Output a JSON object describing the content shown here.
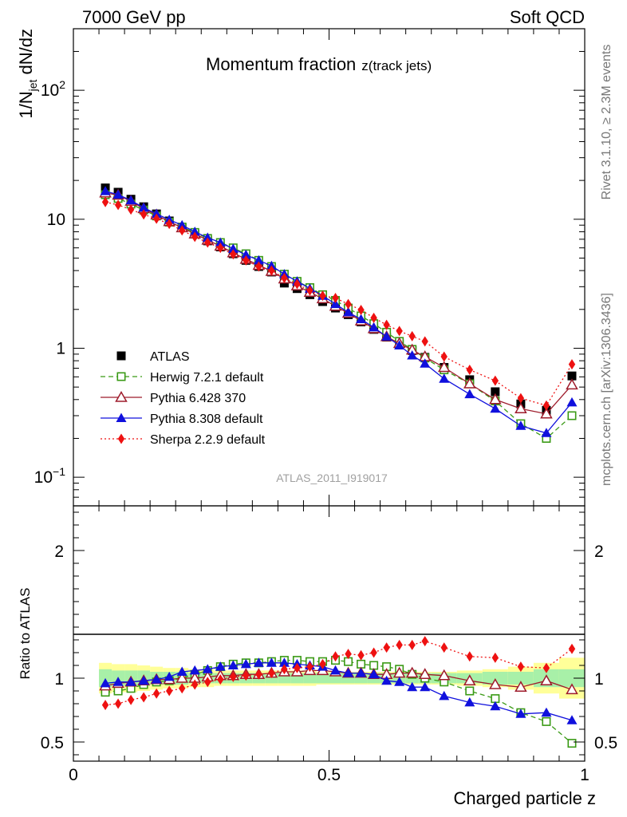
{
  "header": {
    "left": "7000 GeV pp",
    "right": "Soft QCD"
  },
  "side_labels": {
    "rivet": "Rivet 3.1.10, ≥ 2.3M events",
    "mcplots": "mcplots.cern.ch [arXiv:1306.3436]"
  },
  "chart_data": [
    {
      "type": "scatter",
      "panel": "main",
      "title": "Momentum fraction",
      "title_sub": "z(track jets)",
      "ylabel": "1/N_jet dN/dz",
      "ylabel_parts": {
        "pre": "1/N",
        "sub": "jet",
        "post": " dN/dz"
      },
      "yscale": "log",
      "ylim": [
        0.06,
        300
      ],
      "xlim": [
        0,
        1
      ],
      "yticks": [
        {
          "v": 0.1,
          "base": "10",
          "exp": "−1"
        },
        {
          "v": 1,
          "label": "1"
        },
        {
          "v": 10,
          "label": "10"
        },
        {
          "v": 100,
          "base": "10",
          "exp": "2"
        }
      ],
      "analysis_label": "ATLAS_2011_I919017",
      "x": [
        0.0625,
        0.0875,
        0.1125,
        0.1375,
        0.1625,
        0.1875,
        0.2125,
        0.2375,
        0.2625,
        0.2875,
        0.3125,
        0.3375,
        0.3625,
        0.3875,
        0.4125,
        0.4375,
        0.4625,
        0.4875,
        0.5125,
        0.5375,
        0.5625,
        0.5875,
        0.6125,
        0.6375,
        0.6625,
        0.6875,
        0.725,
        0.775,
        0.825,
        0.875,
        0.925,
        0.975
      ],
      "legend_position": "lower-left",
      "series": [
        {
          "name": "ATLAS",
          "marker": "square-filled",
          "color": "#000000",
          "line": "none",
          "values": [
            17.5,
            16.2,
            14.3,
            12.5,
            11.0,
            9.7,
            8.6,
            7.7,
            6.8,
            6.1,
            5.4,
            4.8,
            4.3,
            3.9,
            3.2,
            2.9,
            2.6,
            2.3,
            2.05,
            1.82,
            1.6,
            1.4,
            1.22,
            1.08,
            0.96,
            0.85,
            0.71,
            0.57,
            0.46,
            0.37,
            0.33,
            0.61
          ]
        },
        {
          "name": "Herwig 7.2.1 default",
          "marker": "square-open",
          "color": "#3a9a15",
          "line": "dashed",
          "values": [
            15.5,
            14.5,
            13.1,
            11.8,
            10.6,
            9.5,
            8.7,
            7.9,
            7.1,
            6.6,
            6.0,
            5.4,
            4.8,
            4.3,
            3.75,
            3.3,
            2.95,
            2.6,
            2.35,
            2.05,
            1.78,
            1.55,
            1.33,
            1.13,
            0.98,
            0.84,
            0.68,
            0.53,
            0.39,
            0.26,
            0.2,
            0.3
          ]
        },
        {
          "name": "Pythia 6.428 370",
          "marker": "triangle-open",
          "color": "#9e1b2b",
          "line": "solid",
          "values": [
            16.0,
            15.4,
            13.8,
            12.1,
            10.8,
            9.6,
            8.6,
            7.7,
            6.9,
            6.2,
            5.5,
            4.9,
            4.4,
            3.95,
            3.45,
            3.05,
            2.72,
            2.42,
            2.12,
            1.87,
            1.63,
            1.42,
            1.23,
            1.09,
            0.97,
            0.86,
            0.71,
            0.53,
            0.4,
            0.34,
            0.31,
            0.52
          ]
        },
        {
          "name": "Pythia 8.308 default",
          "marker": "triangle-filled",
          "color": "#1010dd",
          "line": "solid",
          "values": [
            16.5,
            15.5,
            14.0,
            12.3,
            11.0,
            9.9,
            9.0,
            8.0,
            7.2,
            6.6,
            5.9,
            5.3,
            4.8,
            4.35,
            3.75,
            3.3,
            2.9,
            2.55,
            2.2,
            1.9,
            1.68,
            1.45,
            1.23,
            1.05,
            0.88,
            0.76,
            0.58,
            0.44,
            0.34,
            0.25,
            0.22,
            0.38
          ]
        },
        {
          "name": "Sherpa 2.2.9 default",
          "marker": "diamond-filled",
          "color": "#ee1111",
          "line": "dotted",
          "values": [
            13.6,
            12.9,
            11.9,
            10.9,
            10.1,
            9.2,
            8.2,
            7.3,
            6.6,
            6.0,
            5.35,
            4.8,
            4.3,
            4.0,
            3.5,
            3.15,
            2.8,
            2.55,
            2.45,
            2.2,
            1.98,
            1.72,
            1.52,
            1.36,
            1.24,
            1.13,
            0.86,
            0.68,
            0.56,
            0.41,
            0.36,
            0.75
          ]
        }
      ]
    },
    {
      "type": "scatter",
      "panel": "ratio",
      "ylabel": "Ratio to ATLAS",
      "ylim": [
        0.35,
        2.35
      ],
      "xlim": [
        0,
        1
      ],
      "yticks": [
        0.5,
        1,
        2
      ],
      "xlabel": "Charged particle z",
      "xticks": [
        {
          "v": 0,
          "label": "0"
        },
        {
          "v": 0.5,
          "label": "0.5"
        },
        {
          "v": 1,
          "label": "1"
        }
      ],
      "uncertainty_bands": {
        "bin_edges": [
          0.05,
          0.075,
          0.1,
          0.125,
          0.15,
          0.175,
          0.2,
          0.225,
          0.25,
          0.275,
          0.3,
          0.325,
          0.35,
          0.375,
          0.4,
          0.425,
          0.45,
          0.475,
          0.5,
          0.525,
          0.55,
          0.575,
          0.6,
          0.625,
          0.65,
          0.675,
          0.7,
          0.75,
          0.8,
          0.85,
          0.9,
          0.95,
          1.0
        ],
        "inner_half_width": [
          0.07,
          0.06,
          0.06,
          0.06,
          0.05,
          0.05,
          0.05,
          0.04,
          0.04,
          0.04,
          0.04,
          0.04,
          0.04,
          0.04,
          0.04,
          0.04,
          0.04,
          0.04,
          0.04,
          0.04,
          0.04,
          0.04,
          0.04,
          0.04,
          0.04,
          0.04,
          0.04,
          0.04,
          0.05,
          0.05,
          0.07,
          0.07
        ],
        "outer_half_width": [
          0.12,
          0.11,
          0.11,
          0.1,
          0.09,
          0.08,
          0.08,
          0.07,
          0.07,
          0.06,
          0.06,
          0.06,
          0.06,
          0.06,
          0.06,
          0.06,
          0.06,
          0.05,
          0.05,
          0.05,
          0.05,
          0.05,
          0.05,
          0.05,
          0.05,
          0.05,
          0.05,
          0.06,
          0.07,
          0.09,
          0.12,
          0.16
        ],
        "inner_color": "#a8f0a8",
        "outer_color": "#ffff99"
      },
      "x": [
        0.0625,
        0.0875,
        0.1125,
        0.1375,
        0.1625,
        0.1875,
        0.2125,
        0.2375,
        0.2625,
        0.2875,
        0.3125,
        0.3375,
        0.3625,
        0.3875,
        0.4125,
        0.4375,
        0.4625,
        0.4875,
        0.5125,
        0.5375,
        0.5625,
        0.5875,
        0.6125,
        0.6375,
        0.6625,
        0.6875,
        0.725,
        0.775,
        0.825,
        0.875,
        0.925,
        0.975
      ],
      "series": [
        {
          "name": "Herwig 7.2.1 default",
          "marker": "square-open",
          "color": "#3a9a15",
          "line": "dashed",
          "values": [
            0.89,
            0.9,
            0.92,
            0.95,
            0.97,
            0.98,
            1.0,
            1.03,
            1.06,
            1.09,
            1.11,
            1.12,
            1.12,
            1.13,
            1.14,
            1.14,
            1.13,
            1.13,
            1.14,
            1.13,
            1.11,
            1.1,
            1.09,
            1.07,
            1.03,
            1.0,
            0.97,
            0.9,
            0.84,
            0.73,
            0.66,
            0.49
          ]
        },
        {
          "name": "Pythia 6.428 370",
          "marker": "triangle-open",
          "color": "#9e1b2b",
          "line": "solid",
          "values": [
            0.94,
            0.96,
            0.97,
            0.98,
            0.99,
            0.99,
            1.0,
            1.0,
            1.01,
            1.02,
            1.02,
            1.03,
            1.03,
            1.04,
            1.05,
            1.05,
            1.06,
            1.06,
            1.05,
            1.04,
            1.04,
            1.03,
            1.03,
            1.04,
            1.04,
            1.03,
            1.02,
            0.98,
            0.95,
            0.93,
            0.98,
            0.91
          ]
        },
        {
          "name": "Pythia 8.308 default",
          "marker": "triangle-filled",
          "color": "#1010dd",
          "line": "solid",
          "values": [
            0.96,
            0.97,
            0.97,
            0.98,
            0.99,
            1.01,
            1.05,
            1.06,
            1.07,
            1.09,
            1.1,
            1.11,
            1.12,
            1.12,
            1.12,
            1.11,
            1.1,
            1.09,
            1.06,
            1.04,
            1.04,
            1.03,
            0.98,
            0.97,
            0.93,
            0.93,
            0.86,
            0.81,
            0.78,
            0.72,
            0.73,
            0.67
          ]
        },
        {
          "name": "Sherpa 2.2.9 default",
          "marker": "diamond-filled",
          "color": "#ee1111",
          "line": "dotted",
          "values": [
            0.79,
            0.8,
            0.83,
            0.85,
            0.88,
            0.9,
            0.92,
            0.95,
            0.97,
            0.99,
            1.01,
            1.02,
            1.03,
            1.04,
            1.07,
            1.08,
            1.09,
            1.11,
            1.17,
            1.19,
            1.18,
            1.2,
            1.24,
            1.26,
            1.26,
            1.29,
            1.24,
            1.17,
            1.16,
            1.09,
            1.08,
            1.23
          ]
        }
      ]
    }
  ]
}
